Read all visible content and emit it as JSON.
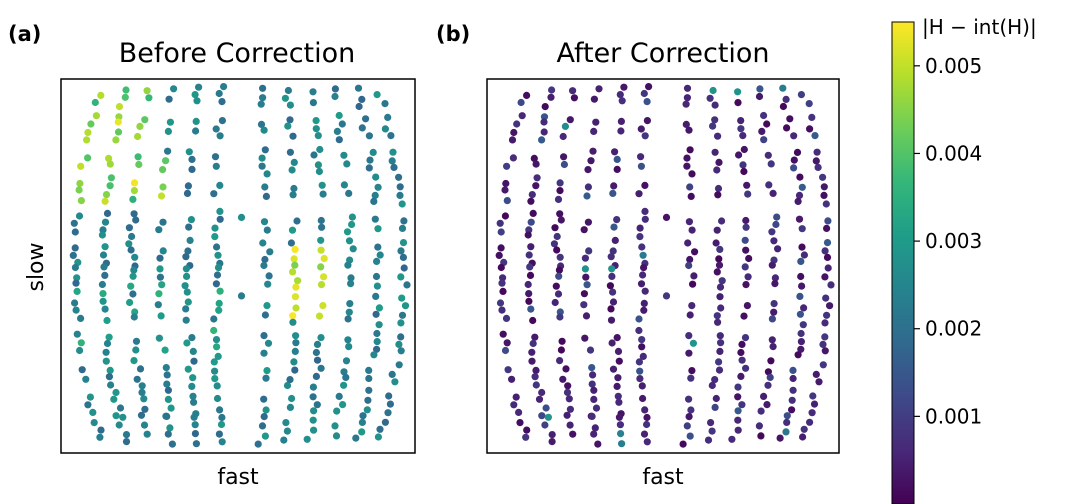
{
  "chart_data": [
    {
      "type": "scatter",
      "panel_label": "(a)",
      "title": "Before Correction",
      "xlabel": "fast",
      "ylabel": "slow",
      "x_ticks": false,
      "y_ticks": false,
      "grid": false,
      "colormap": "viridis",
      "color_value_range": [
        0.0,
        0.0055
      ],
      "points_summary": "Spots arranged in concentric arc-shaped rows (reflection lunes) around the detector center; values mostly 0.001-0.004, highest (about 0.005) in the upper-left group and the center-right group."
    },
    {
      "type": "scatter",
      "panel_label": "(b)",
      "title": "After Correction",
      "xlabel": "fast",
      "ylabel": "",
      "x_ticks": false,
      "y_ticks": false,
      "grid": false,
      "colormap": "viridis",
      "color_value_range": [
        0.0,
        0.0055
      ],
      "points_summary": "Same spot pattern; almost all values below about 0.001 with a few scattered near 0.002-0.003."
    }
  ],
  "colorbar": {
    "label": "|H − int(H)|",
    "ticks": [
      "0.005",
      "0.004",
      "0.003",
      "0.002",
      "0.001"
    ],
    "tick_values": [
      0.005,
      0.004,
      0.003,
      0.002,
      0.001
    ],
    "range": [
      0.0,
      0.0055
    ],
    "colors": [
      "#440154",
      "#482878",
      "#3e4989",
      "#31688e",
      "#26828e",
      "#1f9e89",
      "#35b779",
      "#6ece58",
      "#b5de2b",
      "#fde725"
    ]
  }
}
